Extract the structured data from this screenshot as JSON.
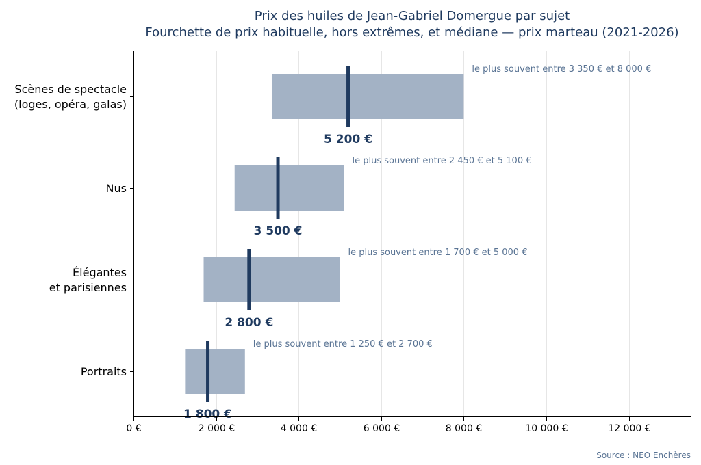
{
  "chart_data": {
    "type": "bar",
    "title": "Prix des huiles de Jean-Gabriel Domergue par sujet",
    "subtitle": "Fourchette de prix habituelle, hors extrêmes, et médiane — prix marteau (2021-2026)",
    "categories": [
      [
        "Scènes de spectacle",
        "(loges, opéra, galas)"
      ],
      [
        "Nus"
      ],
      [
        "Élégantes",
        "et parisiennes"
      ],
      [
        "Portraits"
      ]
    ],
    "ranges": [
      {
        "low": 3350,
        "high": 8000,
        "median": 5200,
        "median_label": "5 200 €",
        "annotation": "le plus souvent entre 3 350 € et 8 000 €"
      },
      {
        "low": 2450,
        "high": 5100,
        "median": 3500,
        "median_label": "3 500 €",
        "annotation": "le plus souvent entre 2 450 € et 5 100 €"
      },
      {
        "low": 1700,
        "high": 5000,
        "median": 2800,
        "median_label": "2 800 €",
        "annotation": "le plus souvent entre 1 700 € et 5 000 €"
      },
      {
        "low": 1250,
        "high": 2700,
        "median": 1800,
        "median_label": "1 800 €",
        "annotation": "le plus souvent entre 1 250 € et 2 700 €"
      }
    ],
    "xlim": [
      0,
      13500
    ],
    "xticks": [
      0,
      2000,
      4000,
      6000,
      8000,
      10000,
      12000
    ],
    "xtick_labels": [
      "0 €",
      "2 000 €",
      "4 000 €",
      "6 000 €",
      "8 000 €",
      "10 000 €",
      "12 000 €"
    ],
    "grid": "vertical",
    "colors": {
      "range": "#a3b2c5",
      "median": "#1f3a5f",
      "annotation": "#5a7494",
      "title": "#1f3a5f"
    },
    "source": "Source : NEO Enchères"
  }
}
